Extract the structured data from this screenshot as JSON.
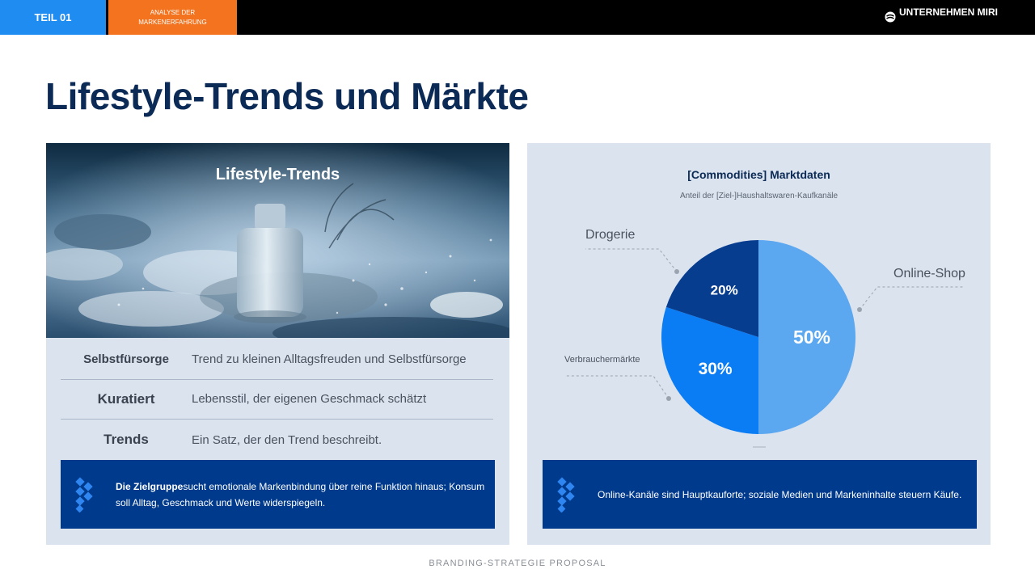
{
  "header": {
    "part_label": "TEIL 01",
    "section_label": "ANALYSE DER MARKENERFAHRUNG",
    "brand_name": "UNTERNEHMEN MIRI",
    "colors": {
      "part_bg": "#1f8cf2",
      "section_bg": "#f4731f",
      "bar_bg": "#000000"
    }
  },
  "page": {
    "title": "Lifestyle-Trends und Märkte",
    "footer": "BRANDING-STRATEGIE PROPOSAL"
  },
  "left_panel": {
    "hero_title": "Lifestyle-Trends",
    "rows": [
      {
        "key": "Selbstfürsorge",
        "value": "Trend zu kleinen Alltagsfreuden und Selbstfürsorge"
      },
      {
        "key": "Kuratiert",
        "value": "Lebensstil, der eigenen Geschmack schätzt"
      },
      {
        "key": "Trends",
        "value": "Ein Satz, der den Trend beschreibt."
      }
    ],
    "note_bold": "Die Zielgruppe",
    "note_text": "sucht emotionale Markenbindung über reine Funktion hinaus; Konsum soll Alltag, Geschmack und Werte widerspiegeln."
  },
  "right_panel": {
    "note_text": "Online-Kanäle sind Hauptkauforte; soziale Medien und Markeninhalte steuern Käufe."
  },
  "chart_data": {
    "type": "pie",
    "title": "[Commodities] Marktdaten",
    "subtitle": "Anteil der [Ziel-]Haushaltswaren-Kaufkanäle",
    "slices": [
      {
        "label": "Online-Shop",
        "value": 50,
        "display": "50%",
        "color": "#5ba7f0"
      },
      {
        "label": "Verbrauchermärkte",
        "value": 30,
        "display": "30%",
        "color": "#0a7cf4"
      },
      {
        "label": "Drogerie",
        "value": 20,
        "display": "20%",
        "color": "#073d8f"
      }
    ]
  }
}
